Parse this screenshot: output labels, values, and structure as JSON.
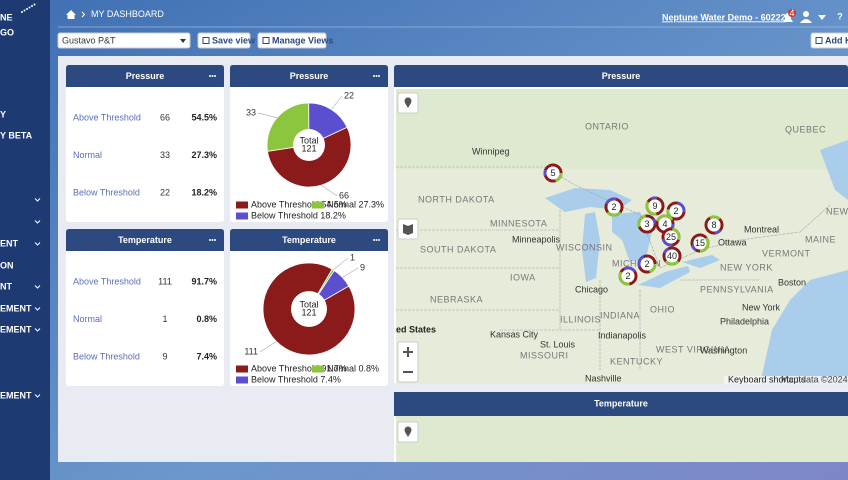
{
  "sidebar": {
    "logo": [
      "NE",
      "GO"
    ],
    "items": [
      "Y",
      "Y BETA",
      "ENT",
      "ON",
      "NT",
      "EMENT",
      "EMENT",
      "EMENT"
    ]
  },
  "topbar": {
    "breadcrumb": "MY DASHBOARD",
    "account": "Neptune Water Demo - 60222",
    "notifications": 4,
    "help": "?"
  },
  "toolbar": {
    "view": "Gustavo P&T",
    "save": "Save view",
    "manage": "Manage Views",
    "add": "Add KP"
  },
  "widgets": [
    {
      "title": "Pressure",
      "rows": [
        [
          "Above Threshold",
          66,
          "54.5%"
        ],
        [
          "Normal",
          33,
          "27.3%"
        ],
        [
          "Below Threshold",
          22,
          "18.2%"
        ]
      ]
    },
    {
      "title": "Pressure",
      "total_label": "Total",
      "total": 121,
      "slices": [
        {
          "name": "Above Threshold",
          "value": 66,
          "color": "#8b1a1a",
          "legend": "Above Threshold 54.5%"
        },
        {
          "name": "Normal",
          "value": 33,
          "color": "#8cc63f",
          "legend": "Normal 27.3%"
        },
        {
          "name": "Below Threshold",
          "value": 22,
          "color": "#5b4fcf",
          "legend": "Below Threshold 18.2%"
        }
      ]
    },
    {
      "title": "Temperature",
      "rows": [
        [
          "Above Threshold",
          111,
          "91.7%"
        ],
        [
          "Normal",
          1,
          "0.8%"
        ],
        [
          "Below Threshold",
          9,
          "7.4%"
        ]
      ]
    },
    {
      "title": "Temperature",
      "total_label": "Total",
      "total": 121,
      "slices": [
        {
          "name": "Above Threshold",
          "value": 111,
          "color": "#8b1a1a",
          "legend": "Above Threshold 91.7%"
        },
        {
          "name": "Normal",
          "value": 1,
          "color": "#8cc63f",
          "legend": "Normal 0.8%"
        },
        {
          "name": "Below Threshold",
          "value": 9,
          "color": "#5b4fcf",
          "legend": "Below Threshold 7.4%"
        }
      ]
    }
  ],
  "maps": [
    {
      "title": "Pressure",
      "places": [
        "Winnipeg",
        "ONTARIO",
        "QUEBEC",
        "NORTH DAKOTA",
        "MINNESOTA",
        "Minneapolis",
        "SOUTH DAKOTA",
        "WISCONSIN",
        "MICHIGAN",
        "IOWA",
        "Chicago",
        "NEBRASKA",
        "ILLINOIS",
        "INDIANA",
        "OHIO",
        "PENNSYLVANIA",
        "NEW YORK",
        "Montreal",
        "Ottawa",
        "VERMONT",
        "NEW BRUNSWICK",
        "MAINE",
        "Kansas City",
        "MISSOURI",
        "St. Louis",
        "Indianapolis",
        "KENTUCKY",
        "WEST VIRGINIA",
        "Washington",
        "Philadelphia",
        "New York",
        "Boston",
        "Nashville",
        "ed States"
      ],
      "clusters": [
        5,
        2,
        9,
        2,
        3,
        4,
        8,
        25,
        15,
        2,
        40,
        2
      ],
      "attribution": [
        "Keyboard shortcuts",
        "Map data ©2024 Google, INE"
      ]
    },
    {
      "title": "Temperature"
    }
  ]
}
